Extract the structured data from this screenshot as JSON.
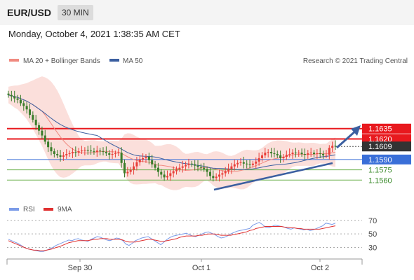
{
  "header": {
    "symbol": "EUR/USD",
    "timeframe": "30 MIN",
    "datetime": "Monday, October 4, 2021 1:38:35 AM CET"
  },
  "legend": {
    "ma_bb": "MA 20 + Bollinger Bands",
    "ma50": "MA 50",
    "credit": "Research © 2021 Trading Central",
    "rsi": "RSI",
    "rsi_ma": "9MA"
  },
  "colors": {
    "candle_up": "#e8403a",
    "candle_down": "#3a7d2a",
    "bollinger": "#f7b7b0",
    "ma20": "#f08a80",
    "ma50": "#3b5fa0",
    "resistance": "#e8191e",
    "pivot": "#3a6fd8",
    "support": "#6ab04c",
    "last_price": "#333333",
    "rsi": "#7b9be8",
    "rsi_ma": "#e03030"
  },
  "chart_data": {
    "type": "candlestick",
    "x_ticks": [
      "Sep 30",
      "Oct 1",
      "Oct 2"
    ],
    "price_levels": [
      {
        "label": "1.1635",
        "value": 1.1635,
        "kind": "resistance"
      },
      {
        "label": "1.1620",
        "value": 1.162,
        "kind": "resistance"
      },
      {
        "label": "1.1609",
        "value": 1.1609,
        "kind": "last"
      },
      {
        "label": "1.1590",
        "value": 1.159,
        "kind": "pivot"
      },
      {
        "label": "1.1575",
        "value": 1.1575,
        "kind": "support"
      },
      {
        "label": "1.1560",
        "value": 1.156,
        "kind": "support"
      }
    ],
    "ohlc_close": [
      1.1684,
      1.1682,
      1.1679,
      1.1677,
      1.1672,
      1.1668,
      1.1663,
      1.1655,
      1.1648,
      1.164,
      1.1632,
      1.1625,
      1.1616,
      1.1608,
      1.1602,
      1.1598,
      1.1596,
      1.1594,
      1.1596,
      1.1598,
      1.1599,
      1.1601,
      1.16,
      1.1602,
      1.1603,
      1.1604,
      1.1603,
      1.1602,
      1.1601,
      1.1603,
      1.1602,
      1.1601,
      1.1599,
      1.1597,
      1.1598,
      1.1599,
      1.16,
      1.1585,
      1.157,
      1.1572,
      1.1575,
      1.158,
      1.1586,
      1.159,
      1.1592,
      1.1594,
      1.1589,
      1.1583,
      1.1578,
      1.1572,
      1.1568,
      1.1564,
      1.1566,
      1.157,
      1.1573,
      1.1576,
      1.1578,
      1.158,
      1.1582,
      1.1584,
      1.1583,
      1.1581,
      1.1579,
      1.1578,
      1.1576,
      1.1572,
      1.1566,
      1.1563,
      1.1565,
      1.1568,
      1.157,
      1.1573,
      1.1576,
      1.158,
      1.1583,
      1.1585,
      1.1586,
      1.1584,
      1.1583,
      1.1582,
      1.1584,
      1.1587,
      1.1592,
      1.1596,
      1.16,
      1.1601,
      1.1599,
      1.1598,
      1.1596,
      1.1592,
      1.1594,
      1.1597,
      1.1598,
      1.16,
      1.1599,
      1.16,
      1.1598,
      1.1597,
      1.1599,
      1.16,
      1.1598,
      1.1599,
      1.1598,
      1.1596,
      1.1597,
      1.1607,
      1.161,
      1.1609
    ],
    "price_ylim": [
      1.1545,
      1.17
    ],
    "rsi": {
      "levels": [
        70,
        50,
        30
      ],
      "ylim": [
        15,
        75
      ],
      "values": [
        42,
        40,
        38,
        36,
        33,
        30,
        28,
        27,
        26,
        25,
        24,
        24,
        26,
        28,
        30,
        33,
        35,
        37,
        39,
        41,
        40,
        42,
        43,
        41,
        40,
        39,
        42,
        44,
        46,
        45,
        43,
        41,
        40,
        42,
        44,
        43,
        40,
        35,
        33,
        36,
        40,
        42,
        44,
        45,
        46,
        43,
        40,
        37,
        34,
        38,
        42,
        45,
        47,
        48,
        49,
        50,
        51,
        49,
        47,
        46,
        48,
        50,
        52,
        53,
        51,
        49,
        46,
        44,
        45,
        47,
        50,
        52,
        54,
        55,
        56,
        57,
        58,
        63,
        65,
        67,
        64,
        60,
        59,
        61,
        63,
        62,
        61,
        60,
        58,
        57,
        59,
        58,
        57,
        56,
        57,
        55,
        56,
        58,
        60,
        62,
        66,
        65,
        64,
        66
      ],
      "ma_values": [
        40,
        38,
        36,
        34,
        32,
        30,
        28,
        27,
        26,
        26,
        25,
        25,
        26,
        27,
        28,
        30,
        31,
        33,
        35,
        37,
        38,
        39,
        40,
        40,
        40,
        40,
        41,
        42,
        42,
        43,
        43,
        43,
        42,
        42,
        42,
        42,
        41,
        39,
        38,
        38,
        38,
        39,
        40,
        41,
        42,
        42,
        41,
        40,
        39,
        39,
        40,
        41,
        42,
        43,
        45,
        46,
        47,
        47,
        47,
        47,
        48,
        48,
        49,
        50,
        50,
        50,
        49,
        48,
        48,
        48,
        48,
        49,
        50,
        51,
        52,
        53,
        55,
        56,
        58,
        59,
        60,
        61,
        61,
        61,
        61,
        61,
        61,
        60,
        60,
        59,
        59,
        58,
        58,
        57,
        57,
        57,
        57,
        57,
        57,
        58,
        59,
        60,
        61,
        62
      ]
    }
  }
}
